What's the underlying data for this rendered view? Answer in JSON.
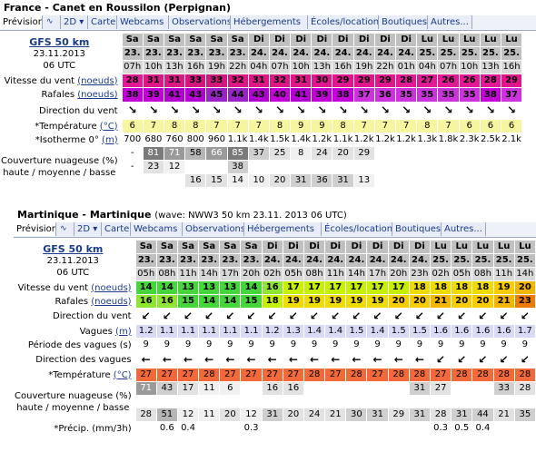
{
  "forecast1": {
    "title": "France - Canet en Roussilon (Perpignan)",
    "tabs": [
      "Prévision",
      "∿",
      "2D ▾",
      "Carte",
      "Webcams",
      "Observations",
      "Hébergements",
      "Écoles/location",
      "Boutiques",
      "Autres..."
    ],
    "model": "GFS 50 km",
    "date": "23.11.2013",
    "run": "06 UTC",
    "days": [
      "Sa",
      "Sa",
      "Sa",
      "Sa",
      "Sa",
      "Sa",
      "Di",
      "Di",
      "Di",
      "Di",
      "Di",
      "Di",
      "Di",
      "Di",
      "Lu",
      "Lu",
      "Lu",
      "Lu",
      "Lu"
    ],
    "daynums": [
      "23.",
      "23.",
      "23.",
      "23.",
      "23.",
      "23.",
      "24.",
      "24.",
      "24.",
      "24.",
      "24.",
      "24.",
      "24.",
      "24.",
      "25.",
      "25.",
      "25.",
      "25.",
      "25."
    ],
    "hours": [
      "07h",
      "10h",
      "13h",
      "16h",
      "19h",
      "22h",
      "04h",
      "07h",
      "10h",
      "13h",
      "16h",
      "19h",
      "22h",
      "01h",
      "04h",
      "07h",
      "10h",
      "13h",
      "16h"
    ],
    "rows": {
      "wind_label": "Vitesse du vent",
      "wind_unit": "(noeuds)",
      "wind": [
        "28",
        "31",
        "31",
        "33",
        "33",
        "32",
        "31",
        "32",
        "31",
        "30",
        "29",
        "29",
        "29",
        "28",
        "27",
        "26",
        "26",
        "28",
        "29"
      ],
      "gusts_label": "Rafales",
      "gusts_unit": "(noeuds)",
      "gusts": [
        "38",
        "39",
        "41",
        "43",
        "45",
        "44",
        "43",
        "40",
        "41",
        "39",
        "38",
        "37",
        "36",
        "35",
        "35",
        "35",
        "35",
        "38",
        "37"
      ],
      "dir_label": "Direction du vent",
      "temp_label": "*Température",
      "temp_unit": "(°C)",
      "temp": [
        "6",
        "7",
        "8",
        "8",
        "7",
        "7",
        "7",
        "8",
        "9",
        "9",
        "8",
        "7",
        "7",
        "7",
        "8",
        "7",
        "6",
        "6",
        "6"
      ],
      "iso_label": "*Isotherme 0°",
      "iso_unit": "(m)",
      "iso": [
        "700",
        "680",
        "760",
        "800",
        "960",
        "1.1k",
        "1.4k",
        "1.5k",
        "1.4k",
        "1.2k",
        "1.1k",
        "1.2k",
        "1.2k",
        "1.2k",
        "1.3k",
        "1.8k",
        "2.3k",
        "2.5k",
        "2.1k"
      ],
      "cloud_label1": "Couverture nuageuse (%)",
      "cloud_label2": "haute / moyenne / basse",
      "cloud_high": [
        "-",
        "81",
        "71",
        "58",
        "66",
        "85",
        "37",
        "25",
        "8",
        "24",
        "20",
        "29",
        "",
        "",
        "",
        "",
        "",
        "",
        ""
      ],
      "cloud_mid": [
        "-",
        "23",
        "12",
        "",
        "",
        "38",
        "",
        "",
        "",
        "",
        "",
        "",
        "",
        "",
        "",
        "",
        "",
        "",
        ""
      ],
      "cloud_low": [
        "",
        "",
        "",
        "16",
        "15",
        "14",
        "10",
        "20",
        "31",
        "36",
        "31",
        "13",
        "",
        "",
        "",
        "",
        "",
        "",
        ""
      ]
    }
  },
  "forecast2": {
    "title": "Martinique - Martinique",
    "subtitle": "(wave: NWW3 50 km 23.11. 2013 06 UTC)",
    "tabs": [
      "Prévision",
      "∿",
      "2D ▾",
      "Carte",
      "Webcams",
      "Observations",
      "Hébergements",
      "Écoles/location",
      "Boutiques",
      "Autres..."
    ],
    "model": "GFS 50 km",
    "date": "23.11.2013",
    "run": "06 UTC",
    "days": [
      "Sa",
      "Sa",
      "Sa",
      "Sa",
      "Sa",
      "Sa",
      "Di",
      "Di",
      "Di",
      "Di",
      "Di",
      "Di",
      "Di",
      "Di",
      "Lu",
      "Lu",
      "Lu",
      "Lu",
      "Lu"
    ],
    "daynums": [
      "23.",
      "23.",
      "23.",
      "23.",
      "23.",
      "23.",
      "24.",
      "24.",
      "24.",
      "24.",
      "24.",
      "24.",
      "24.",
      "24.",
      "25.",
      "25.",
      "25.",
      "25.",
      "25."
    ],
    "hours": [
      "05h",
      "08h",
      "11h",
      "14h",
      "17h",
      "20h",
      "02h",
      "05h",
      "08h",
      "11h",
      "14h",
      "17h",
      "20h",
      "23h",
      "02h",
      "05h",
      "08h",
      "11h",
      "14h"
    ],
    "rows": {
      "wind_label": "Vitesse du vent",
      "wind_unit": "(noeuds)",
      "wind": [
        "14",
        "14",
        "13",
        "13",
        "13",
        "14",
        "16",
        "17",
        "17",
        "17",
        "17",
        "17",
        "17",
        "18",
        "18",
        "18",
        "18",
        "19",
        "20"
      ],
      "gusts_label": "Rafales",
      "gusts_unit": "(noeuds)",
      "gusts": [
        "16",
        "16",
        "15",
        "14",
        "14",
        "15",
        "18",
        "19",
        "19",
        "19",
        "19",
        "19",
        "20",
        "20",
        "21",
        "20",
        "20",
        "21",
        "23"
      ],
      "dir_label": "Direction du vent",
      "waves_label": "Vagues",
      "waves_unit": "(m)",
      "waves": [
        "1.2",
        "1.1",
        "1.1",
        "1.1",
        "1.1",
        "1.1",
        "1.2",
        "1.3",
        "1.4",
        "1.4",
        "1.5",
        "1.4",
        "1.5",
        "1.5",
        "1.6",
        "1.6",
        "1.6",
        "1.6",
        "1.7"
      ],
      "period_label": "Période des vagues (s)",
      "period": [
        "9",
        "9",
        "9",
        "9",
        "9",
        "9",
        "9",
        "9",
        "9",
        "9",
        "9",
        "9",
        "9",
        "9",
        "9",
        "9",
        "9",
        "9",
        "9"
      ],
      "wdir_label": "Direction des vagues",
      "temp_label": "*Température",
      "temp_unit": "(°C)",
      "temp": [
        "27",
        "27",
        "27",
        "28",
        "27",
        "27",
        "27",
        "27",
        "28",
        "27",
        "28",
        "27",
        "28",
        "28",
        "27",
        "28",
        "28",
        "28",
        "28"
      ],
      "cloud_label1": "Couverture nuageuse (%)",
      "cloud_label2": "haute / moyenne / basse",
      "cloud_high": [
        "71",
        "43",
        "17",
        "11",
        "6",
        "",
        "16",
        "16",
        "",
        "",
        "",
        "",
        "",
        "31",
        "27",
        "",
        "",
        "33",
        "28"
      ],
      "cloud_mid": [
        "",
        "",
        "",
        "",
        "",
        "",
        "",
        "",
        "",
        "",
        "",
        "",
        "",
        "",
        "",
        "",
        "",
        "",
        ""
      ],
      "cloud_low": [
        "28",
        "51",
        "12",
        "11",
        "20",
        "12",
        "31",
        "20",
        "24",
        "21",
        "30",
        "31",
        "29",
        "31",
        "28",
        "31",
        "44",
        "21",
        "35"
      ],
      "precip_label": "*Précip. (mm/3h)",
      "precip": [
        "",
        "0.6",
        "0.4",
        "",
        "",
        "0.3",
        "",
        "",
        "",
        "",
        "",
        "",
        "",
        "",
        "0.3",
        "0.5",
        "0.4",
        "",
        ""
      ]
    }
  },
  "colors": {
    "wind1": "#e0168f",
    "gusts1": "#c400d8",
    "temp1": "#f6f6a0",
    "wind2_low": "#44d63a",
    "wind2_mid": "#c5f000",
    "wind2_high": "#f2b600",
    "waves": "#d9daf6",
    "temp2": "#f26a3a"
  }
}
